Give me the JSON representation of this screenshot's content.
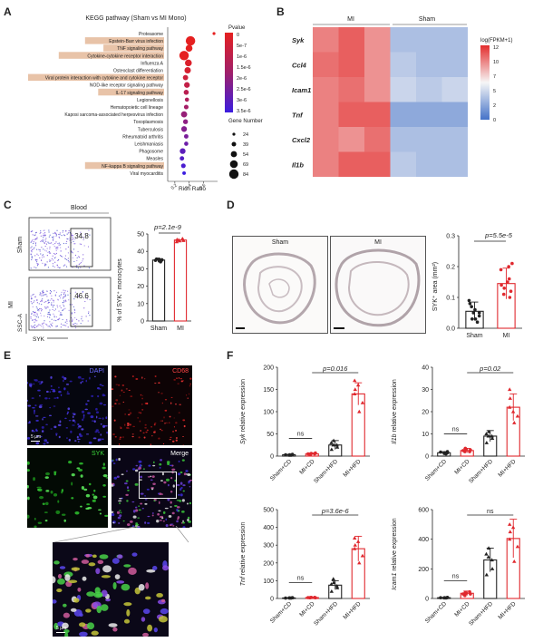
{
  "panel_letters": [
    "A",
    "B",
    "C",
    "D",
    "E",
    "F"
  ],
  "colors": {
    "highlight": "#e8c3a8",
    "red": "#e0282e",
    "blue": "#4a6fd6"
  },
  "A": {
    "title": "KEGG pathway (Sham vs MI Mono)",
    "xlabel": "Rich Ratio",
    "pvalue_title": "Pvalue",
    "pvalue_ticks": [
      "0",
      "5e-7",
      "1e-6",
      "1.5e-6",
      "2e-6",
      "2.5e-6",
      "3e-6",
      "3.5e-6"
    ],
    "gene_title": "Gene Number",
    "gene_ticks": [
      "24",
      "39",
      "54",
      "69",
      "84"
    ],
    "xticks": [
      "0.2",
      "0.4",
      "0.6"
    ]
  },
  "B": {
    "groups": [
      "MI",
      "Sham"
    ],
    "genes": [
      "Syk",
      "Ccl4",
      "Icam1",
      "Tnf",
      "Cxcl2",
      "Il1b"
    ],
    "colorbar_title": "log(FPKM+1)",
    "colorbar_ticks": [
      "12",
      "10",
      "7",
      "5",
      "2",
      "0"
    ]
  },
  "C": {
    "flow_title": "Blood",
    "row_labels": [
      "Sham",
      "MI"
    ],
    "gate_values": [
      "34.8",
      "46.6"
    ],
    "y_axis": "SSC-A",
    "x_axis": "SYK",
    "pvalue": "p=2.1e-9",
    "ylabel": "% of SYK⁺ monocytes",
    "yticks": [
      "0",
      "10",
      "20",
      "30",
      "40",
      "50"
    ]
  },
  "D": {
    "image_labels": [
      "Sham",
      "MI"
    ],
    "pvalue": "p=5.5e-5",
    "ylabel": "SYK⁺ area (mm²)",
    "yticks": [
      "0.0",
      "0.1",
      "0.2",
      "0.3"
    ]
  },
  "E": {
    "channels": [
      "DAPI",
      "CD68",
      "SYK",
      "Merge"
    ],
    "scale_label": "5 µm"
  },
  "F": {
    "categories": [
      "Sham+CD",
      "MI+CD",
      "Sham+HFD",
      "MI+HFD"
    ],
    "ns": "ns",
    "panels": [
      {
        "gene": "Syk",
        "ylabel_suffix": " relative expression",
        "pvalue": "p=0.016",
        "yticks": [
          "0",
          "50",
          "100",
          "150",
          "200"
        ]
      },
      {
        "gene": "Il1b",
        "ylabel_suffix": " relative expression",
        "pvalue": "p=0.02",
        "yticks": [
          "0",
          "10",
          "20",
          "30",
          "40"
        ]
      },
      {
        "gene": "Tnf",
        "ylabel_suffix": " relative expression",
        "pvalue": "p=3.6e-6",
        "yticks": [
          "0",
          "100",
          "200",
          "300",
          "400",
          "500"
        ]
      },
      {
        "gene": "Icam1",
        "ylabel_suffix": " relative expression",
        "pvalue": "",
        "yticks": [
          "0",
          "200",
          "400",
          "600"
        ]
      }
    ]
  },
  "chart_data": [
    {
      "type": "scatter",
      "title": "KEGG pathway (Sham vs MI Mono)",
      "xlabel": "Rich Ratio",
      "categories": [
        "Proteasome",
        "Epstein-Barr virus infection",
        "TNF signaling pathway",
        "Cytokine-cytokine receptor interaction",
        "Influenza A",
        "Osteoclast differentiation",
        "Viral protein interaction with cytokine and cytokine receptor",
        "NOD-like receptor signaling pathway",
        "IL-17 signaling pathway",
        "Legionellosis",
        "Hematopoietic cell lineage",
        "Kaposi sarcoma-associated herpesvirus infection",
        "Toxoplasmosis",
        "Tuberculosis",
        "Rheumatoid arthritis",
        "Leishmaniasis",
        "Phagosome",
        "Measles",
        "NF-kappa B signaling pathway",
        "Viral myocarditis"
      ],
      "highlighted": [
        "Epstein-Barr virus infection",
        "TNF signaling pathway",
        "Cytokine-cytokine receptor interaction",
        "Viral protein interaction with cytokine and cytokine receptor",
        "IL-17 signaling pathway",
        "NF-kappa B signaling pathway"
      ],
      "rich_ratio": [
        0.75,
        0.42,
        0.4,
        0.33,
        0.39,
        0.38,
        0.35,
        0.37,
        0.36,
        0.37,
        0.36,
        0.33,
        0.35,
        0.33,
        0.36,
        0.36,
        0.31,
        0.3,
        0.32,
        0.33
      ],
      "gene_number": [
        24,
        84,
        60,
        84,
        60,
        56,
        46,
        50,
        44,
        36,
        40,
        54,
        42,
        50,
        38,
        36,
        50,
        38,
        40,
        30
      ],
      "pvalue": [
        0,
        0,
        0,
        0,
        2e-07,
        3e-07,
        5e-07,
        7e-07,
        9e-07,
        1.1e-06,
        1.3e-06,
        1.6e-06,
        1.8e-06,
        2e-06,
        2.2e-06,
        2.5e-06,
        2.8e-06,
        3e-06,
        3.2e-06,
        3.5e-06
      ],
      "xlim": [
        0.1,
        0.8
      ]
    },
    {
      "type": "heatmap",
      "rows": [
        "Syk",
        "Ccl4",
        "Icam1",
        "Tnf",
        "Cxcl2",
        "Il1b"
      ],
      "column_groups": [
        "MI",
        "Sham"
      ],
      "values": [
        [
          9.5,
          10.5,
          9.0,
          3.5,
          3.5,
          3.5
        ],
        [
          10.0,
          10.5,
          9.0,
          4.0,
          3.5,
          3.5
        ],
        [
          9.5,
          10.0,
          9.0,
          4.5,
          4.0,
          4.5
        ],
        [
          9.5,
          10.5,
          10.5,
          2.5,
          2.5,
          2.5
        ],
        [
          9.5,
          9.0,
          10.0,
          3.5,
          3.5,
          3.5
        ],
        [
          9.5,
          10.5,
          10.5,
          4.0,
          3.5,
          3.5
        ]
      ],
      "colorbar": [
        0,
        12
      ]
    },
    {
      "type": "bar",
      "categories": [
        "Sham",
        "MI"
      ],
      "values": [
        35,
        46.5
      ],
      "ylim": [
        0,
        50
      ],
      "points": [
        [
          34,
          34.5,
          35,
          35.5,
          34.8,
          35.2,
          35.6
        ],
        [
          45.5,
          46,
          46.5,
          47,
          46.2,
          46.8,
          47.2
        ]
      ]
    },
    {
      "type": "bar",
      "categories": [
        "Sham",
        "MI"
      ],
      "values": [
        0.055,
        0.145
      ],
      "errors": [
        0.03,
        0.05
      ],
      "ylim": [
        0,
        0.3
      ],
      "points": [
        [
          0.02,
          0.03,
          0.05,
          0.06,
          0.08,
          0.04,
          0.07,
          0.09,
          0.05,
          0.03
        ],
        [
          0.1,
          0.12,
          0.14,
          0.16,
          0.2,
          0.19,
          0.13,
          0.11,
          0.15,
          0.21
        ]
      ]
    },
    {
      "type": "bar",
      "title": "Syk",
      "categories": [
        "Sham+CD",
        "MI+CD",
        "Sham+HFD",
        "MI+HFD"
      ],
      "values": [
        3,
        5,
        25,
        140
      ],
      "errors": [
        1,
        2,
        10,
        25
      ],
      "ylim": [
        0,
        200
      ],
      "points": [
        [
          2,
          3,
          4,
          2,
          3,
          3
        ],
        [
          4,
          5,
          6,
          3,
          5,
          7
        ],
        [
          15,
          20,
          25,
          30,
          35,
          25
        ],
        [
          100,
          120,
          140,
          150,
          170,
          160
        ]
      ]
    },
    {
      "type": "bar",
      "title": "Il1b",
      "categories": [
        "Sham+CD",
        "MI+CD",
        "Sham+HFD",
        "MI+HFD"
      ],
      "values": [
        1.5,
        2.5,
        9,
        22
      ],
      "errors": [
        0.5,
        1,
        2.5,
        6
      ],
      "ylim": [
        0,
        40
      ],
      "points": [
        [
          1,
          1.5,
          2,
          1.2,
          1.8,
          1.5
        ],
        [
          2,
          2.5,
          3,
          3.5,
          2,
          2.8
        ],
        [
          6,
          8,
          9,
          10,
          11,
          9
        ],
        [
          15,
          18,
          22,
          26,
          30,
          20
        ]
      ]
    },
    {
      "type": "bar",
      "title": "Tnf",
      "categories": [
        "Sham+CD",
        "MI+CD",
        "Sham+HFD",
        "MI+HFD"
      ],
      "values": [
        3,
        5,
        75,
        280
      ],
      "errors": [
        1,
        2,
        25,
        70
      ],
      "ylim": [
        0,
        500
      ],
      "points": [
        [
          2,
          3,
          4,
          3,
          2,
          4
        ],
        [
          4,
          5,
          6,
          5,
          6,
          4
        ],
        [
          40,
          60,
          70,
          80,
          90,
          110
        ],
        [
          200,
          240,
          280,
          300,
          340,
          320
        ]
      ]
    },
    {
      "type": "bar",
      "title": "Icam1",
      "categories": [
        "Sham+CD",
        "MI+CD",
        "Sham+HFD",
        "MI+HFD"
      ],
      "values": [
        5,
        35,
        260,
        405
      ],
      "errors": [
        2,
        15,
        80,
        130
      ],
      "ylim": [
        0,
        600
      ],
      "points": [
        [
          3,
          5,
          6,
          4,
          5,
          7
        ],
        [
          20,
          30,
          35,
          40,
          45,
          30
        ],
        [
          160,
          200,
          260,
          300,
          340,
          280
        ],
        [
          250,
          350,
          400,
          450,
          500,
          480
        ]
      ]
    }
  ]
}
